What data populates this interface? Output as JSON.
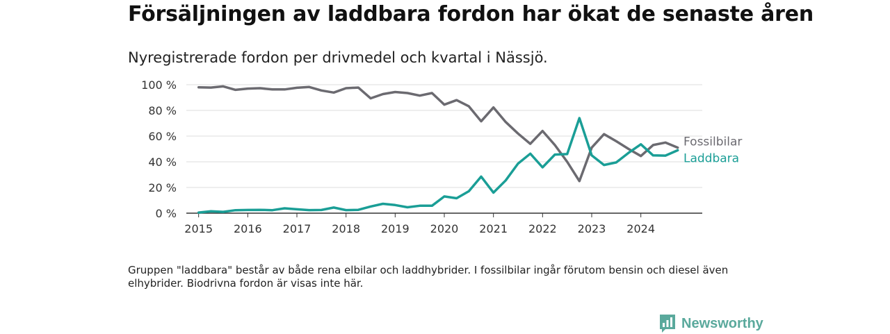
{
  "title": "Försäljningen av laddbara fordon har ökat de senaste åren",
  "subtitle": "Nyregistrerade fordon per drivmedel och kvartal i Nässjö.",
  "note": "Gruppen \"laddbara\" består av både rena elbilar och laddhybrider. I fossilbilar ingår förutom bensin och diesel även elhybrider. Biodrivna fordon är visas inte här.",
  "logo": {
    "text": "Newsworthy",
    "icon": "newsworthy-bar-chart-icon"
  },
  "colors": {
    "fossil": "#6b6a70",
    "laddbara": "#1a9e96",
    "grid": "#dddddd",
    "axis": "#333333",
    "brand": "#5aa99c"
  },
  "chart_data": {
    "type": "line",
    "title": "Försäljningen av laddbara fordon har ökat de senaste åren",
    "subtitle": "Nyregistrerade fordon per drivmedel och kvartal i Nässjö.",
    "xlabel": "",
    "ylabel": "",
    "x": [
      2015.0,
      2015.25,
      2015.5,
      2015.75,
      2016.0,
      2016.25,
      2016.5,
      2016.75,
      2017.0,
      2017.25,
      2017.5,
      2017.75,
      2018.0,
      2018.25,
      2018.5,
      2018.75,
      2019.0,
      2019.25,
      2019.5,
      2019.75,
      2020.0,
      2020.25,
      2020.5,
      2020.75,
      2021.0,
      2021.25,
      2021.5,
      2021.75,
      2022.0,
      2022.25,
      2022.5,
      2022.75,
      2023.0,
      2023.25,
      2023.5,
      2023.75,
      2024.0,
      2024.25,
      2024.5,
      2024.75
    ],
    "xlim": [
      2014.75,
      2025.25
    ],
    "x_ticks": [
      2015,
      2016,
      2017,
      2018,
      2019,
      2020,
      2021,
      2022,
      2023,
      2024
    ],
    "x_tick_labels": [
      "2015",
      "2016",
      "2017",
      "2018",
      "2019",
      "2020",
      "2021",
      "2022",
      "2023",
      "2024"
    ],
    "ylim": [
      0,
      100
    ],
    "y_ticks": [
      0,
      20,
      40,
      60,
      80,
      100
    ],
    "y_tick_labels": [
      "0 %",
      "20 %",
      "40 %",
      "60 %",
      "80 %",
      "100 %"
    ],
    "grid": true,
    "series": [
      {
        "name": "Fossilbilar",
        "key": "fossil",
        "values": [
          98,
          97.8,
          98.7,
          96,
          97,
          97.3,
          96.3,
          96.3,
          97.6,
          98.2,
          95.5,
          93.9,
          97.3,
          97.8,
          89.4,
          92.7,
          94.3,
          93.5,
          91.5,
          93.5,
          84.5,
          88,
          83.2,
          71.5,
          82.3,
          71,
          62,
          54,
          64,
          53,
          40,
          25,
          51,
          61.5,
          56,
          50,
          44.5,
          53,
          55,
          51
        ]
      },
      {
        "name": "Laddbara",
        "key": "laddbara",
        "values": [
          0.5,
          1.5,
          1,
          2.3,
          2.5,
          2.6,
          2.3,
          3.8,
          3,
          2.4,
          2.5,
          4.4,
          2.4,
          2.6,
          5.2,
          7.3,
          6.3,
          4.6,
          5.8,
          5.8,
          13,
          11.6,
          17.1,
          28.5,
          16,
          25.5,
          38.6,
          46.3,
          35.7,
          45.6,
          46,
          74,
          45,
          37.5,
          39.5,
          47,
          53.6,
          45,
          44.8,
          49
        ]
      }
    ]
  }
}
